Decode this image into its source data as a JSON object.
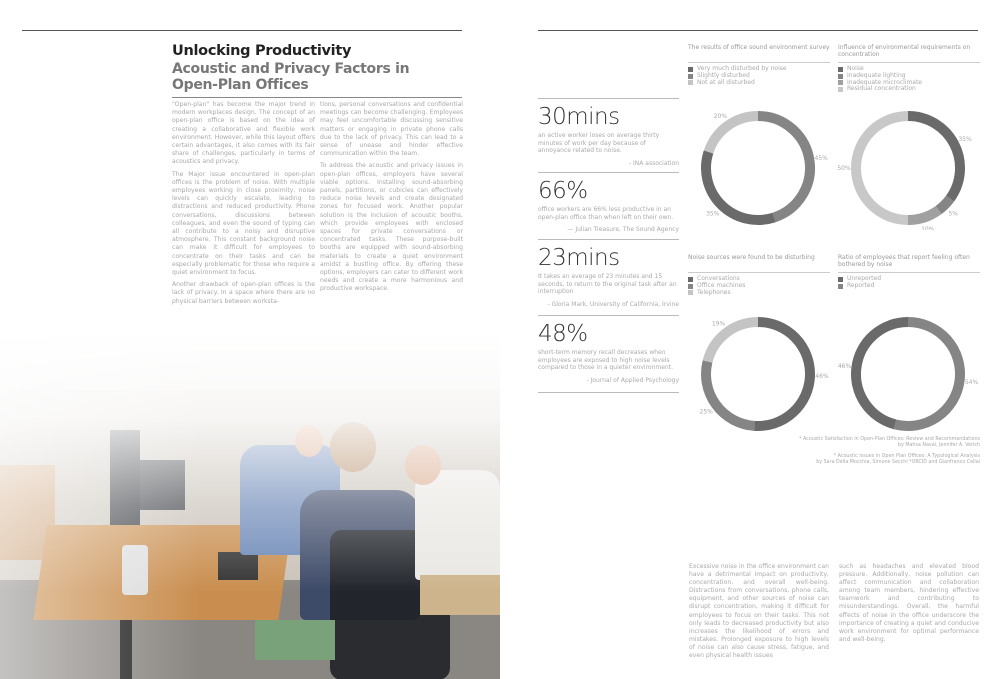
{
  "article": {
    "title": "Unlocking Productivity",
    "subtitle": "Acoustic and Privacy Factors in Open-Plan Offices",
    "column1": [
      "\"Open-plan\" has become the major trend in modern workplaces design. The concept of an open-plan office is based on the idea of creating a collaborative and flexible work environment. However, while this layout offers certain advantages, it also comes with its fair share of challenges, particularly in terms of acoustics and privacy.",
      "The Major issue encountered in open-plan offices is the problem of noise. With multiple employees working in close proximity, noise levels can quickly escalate, leading to distractions and reduced productivity. Phone conversations, discussions between colleagues, and even the sound of typing can all contribute to a noisy and disruptive atmosphere. This constant background noise can make it difficult for employees to concentrate on their tasks and can be especially problematic for those who require a quiet environment to focus.",
      "Another drawback of open-plan offices is the lack of privacy. In a space where there are no physical barriers between worksta-"
    ],
    "column2": [
      "tions, personal conversations and confidential meetings can become challenging. Employees may feel uncomfortable discussing sensitive matters or engaging in private phone calls due to the lack of privacy. This can lead to a sense of unease and hinder effective communication within the team.",
      "To address the acoustic and privacy issues in open-plan offices, employers have several viable options. Installing sound-absorbing panels, partitions, or cubicles can effectively reduce noise levels and create designated zones for focused work. Another popular solution is the inclusion of acoustic booths, which provide employees with enclosed spaces for private conversations or concentrated tasks. These purpose-built booths are equipped with sound-absorbing materials to create a quiet environment amidst a bustling office. By offering these options, employers can cater to different work needs and create a more harmonious and productive workspace."
    ]
  },
  "stats": [
    {
      "value": "30mins",
      "description": "an active worker loses on average thirty minutes of work per day because of annoyance related to noise.",
      "source": "- INA association"
    },
    {
      "value": "66%",
      "description": "office workers are 66% less productive in an open-plan office than when left on their own.",
      "source": "— Julian Treasure, The Sound Agency"
    },
    {
      "value": "23mins",
      "description": "It takes an average of 23 minutes and 15 seconds, to return to the original task after an interruption",
      "source": "- Gloria Mark, University of California, Irvine"
    },
    {
      "value": "48%",
      "description": "short-term memory recall decreases when employees are exposed to high noise levels compared to those in a quieter environment.",
      "source": "- Journal of Applied Psychology"
    }
  ],
  "charts": [
    {
      "title": "The results of office sound environment survey",
      "type": "donut",
      "legend": [
        {
          "label": "Very much disturbed by noise",
          "color": "#6a6a6a"
        },
        {
          "label": "Slightly disturbed",
          "color": "#858585"
        },
        {
          "label": "Not at all disturbed",
          "color": "#c4c4c4"
        }
      ],
      "segments": [
        {
          "value": 45,
          "label": "45%",
          "color": "#858585"
        },
        {
          "value": 35,
          "label": "35%",
          "color": "#6a6a6a"
        },
        {
          "value": 20,
          "label": "20%",
          "color": "#c4c4c4"
        }
      ]
    },
    {
      "title": "Influence of environmental requirements on concentration",
      "type": "donut",
      "legend": [
        {
          "label": "Noise",
          "color": "#6a6a6a"
        },
        {
          "label": "Inadequate lighting",
          "color": "#858585"
        },
        {
          "label": "Inadequate microclimate",
          "color": "#a0a0a0"
        },
        {
          "label": "Residual concentration",
          "color": "#c8c8c8"
        }
      ],
      "segments": [
        {
          "value": 35,
          "label": "35%",
          "color": "#6a6a6a"
        },
        {
          "value": 5,
          "label": "5%",
          "color": "#858585"
        },
        {
          "value": 10,
          "label": "10%",
          "color": "#a0a0a0"
        },
        {
          "value": 50,
          "label": "50%",
          "color": "#c8c8c8"
        }
      ]
    },
    {
      "title": "Noise sources were found to be disturbing",
      "type": "donut",
      "legend": [
        {
          "label": "Conversations",
          "color": "#6a6a6a"
        },
        {
          "label": "Office machines",
          "color": "#858585"
        },
        {
          "label": "Telephones",
          "color": "#c4c4c4"
        }
      ],
      "segments": [
        {
          "value": 46,
          "label": "46%",
          "color": "#6a6a6a"
        },
        {
          "value": 25,
          "label": "25%",
          "color": "#858585"
        },
        {
          "value": 19,
          "label": "19%",
          "color": "#c4c4c4"
        }
      ]
    },
    {
      "title": "Ratio of employees that report feeling often bothered by noise",
      "type": "donut",
      "legend": [
        {
          "label": "Unreported",
          "color": "#6a6a6a"
        },
        {
          "label": "Reported",
          "color": "#858585"
        }
      ],
      "segments": [
        {
          "value": 54,
          "label": "54%",
          "color": "#858585"
        },
        {
          "value": 46,
          "label": "46%",
          "color": "#6a6a6a"
        }
      ]
    }
  ],
  "footnotes": [
    "* Acoustic Satisfaction in Open-Plan Offices: Review and Recommendations",
    "by Mahsa Navai, Jennifer A. Veitch",
    "* Acoustic Issues in Open Plan Offices: A Typological Analysis",
    "by Sara Della Mocchia, Simone Secchi *ORCID and Gianfranco Cellai"
  ],
  "bottom_text": [
    "Excessive noise in the office environment can have a detrimental impact on productivity, concentration, and overall well-being. Distractions from conversations, phone calls, equipment, and other sources of noise can disrupt concentration, making it difficult for employees to focus on their tasks. This not only leads to decreased productivity but also increases the likelihood of errors and mistakes. Prolonged exposure to high levels of noise can also cause stress, fatigue, and even physical health issues",
    "such as headaches and elevated blood pressure. Additionally, noise pollution can affect communication and collaboration among team members, hindering effective teamwork and contributing to misunderstandings. Overall, the harmful effects of noise in the office underscore the importance of creating a quiet and conducive work environment for optimal performance and well-being."
  ]
}
